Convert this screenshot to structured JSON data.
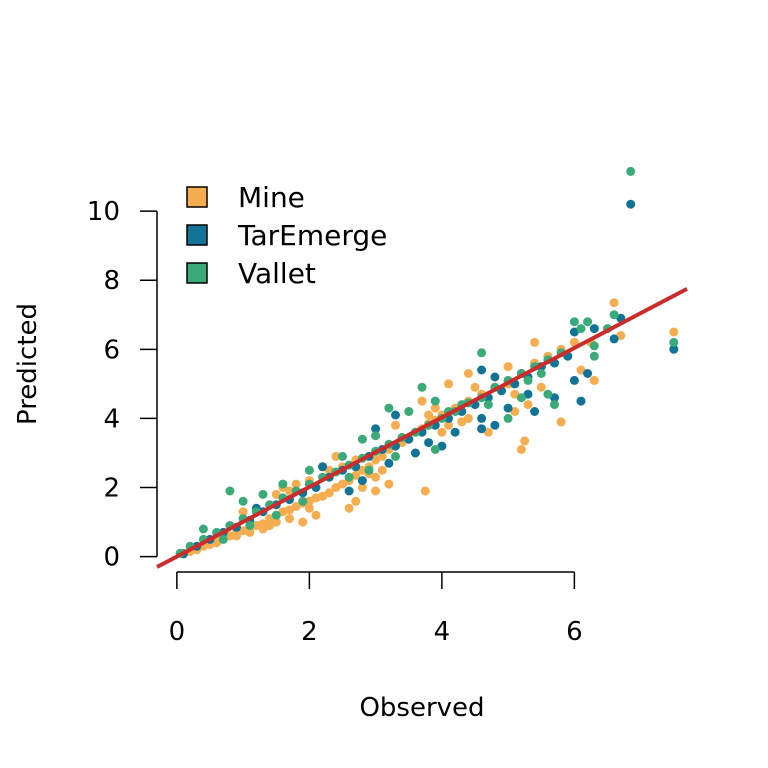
{
  "chart_data": {
    "type": "scatter",
    "xlabel": "Observed",
    "ylabel": "Predicted",
    "xticks": [
      0,
      2,
      4,
      6
    ],
    "yticks": [
      0,
      2,
      4,
      6,
      8,
      10
    ],
    "xlim": [
      -0.3,
      7.7
    ],
    "ylim": [
      -0.3,
      10.9
    ],
    "legend": {
      "position": "top-left",
      "entries": [
        {
          "label": "Mine",
          "color": "#F5AD4F"
        },
        {
          "label": "TarEmerge",
          "color": "#117497"
        },
        {
          "label": "Vallet",
          "color": "#3AAA78"
        }
      ]
    },
    "fit_line": {
      "color": "#CC2B2B",
      "x": [
        -0.3,
        7.7
      ],
      "y": [
        -0.3,
        7.75
      ]
    },
    "series": [
      {
        "name": "Mine",
        "color": "#F5AD4F",
        "points": [
          [
            0.1,
            0.1
          ],
          [
            0.2,
            0.15
          ],
          [
            0.3,
            0.25
          ],
          [
            0.4,
            0.3
          ],
          [
            0.5,
            0.35
          ],
          [
            0.6,
            0.5
          ],
          [
            0.7,
            0.55
          ],
          [
            0.8,
            0.6
          ],
          [
            0.9,
            0.7
          ],
          [
            1.0,
            0.75
          ],
          [
            1.1,
            0.8
          ],
          [
            1.2,
            0.9
          ],
          [
            1.3,
            0.95
          ],
          [
            1.4,
            1.1
          ],
          [
            1.5,
            1.2
          ],
          [
            1.6,
            1.3
          ],
          [
            1.7,
            1.35
          ],
          [
            1.8,
            1.45
          ],
          [
            1.9,
            1.55
          ],
          [
            2.0,
            1.6
          ],
          [
            2.1,
            1.7
          ],
          [
            2.2,
            1.75
          ],
          [
            2.3,
            1.85
          ],
          [
            2.4,
            2.0
          ],
          [
            2.5,
            2.1
          ],
          [
            2.6,
            2.2
          ],
          [
            2.7,
            2.35
          ],
          [
            2.8,
            2.5
          ],
          [
            2.9,
            2.6
          ],
          [
            3.0,
            2.8
          ],
          [
            3.1,
            2.9
          ],
          [
            3.2,
            3.1
          ],
          [
            3.3,
            3.2
          ],
          [
            3.4,
            3.3
          ],
          [
            3.5,
            3.4
          ],
          [
            3.6,
            3.6
          ],
          [
            3.7,
            3.7
          ],
          [
            3.8,
            3.85
          ],
          [
            3.9,
            3.95
          ],
          [
            4.0,
            4.1
          ],
          [
            4.2,
            4.3
          ],
          [
            4.4,
            4.5
          ],
          [
            4.6,
            4.7
          ],
          [
            4.8,
            4.9
          ],
          [
            5.0,
            5.0
          ],
          [
            5.2,
            5.3
          ],
          [
            5.4,
            5.6
          ],
          [
            5.6,
            5.8
          ],
          [
            5.8,
            6.0
          ],
          [
            6.0,
            6.2
          ],
          [
            1.0,
            1.3
          ],
          [
            1.5,
            1.8
          ],
          [
            2.0,
            2.2
          ],
          [
            2.3,
            2.5
          ],
          [
            2.5,
            2.6
          ],
          [
            2.7,
            2.8
          ],
          [
            2.9,
            2.4
          ],
          [
            3.0,
            2.3
          ],
          [
            3.2,
            2.1
          ],
          [
            3.0,
            1.9
          ],
          [
            1.3,
            0.8
          ],
          [
            1.5,
            1.0
          ],
          [
            1.9,
            1.0
          ],
          [
            2.1,
            1.2
          ],
          [
            2.6,
            1.4
          ],
          [
            2.8,
            2.0
          ],
          [
            3.1,
            2.5
          ],
          [
            3.6,
            3.0
          ],
          [
            4.1,
            3.8
          ],
          [
            4.4,
            4.0
          ],
          [
            4.5,
            4.9
          ],
          [
            4.4,
            5.3
          ],
          [
            4.1,
            5.0
          ],
          [
            3.9,
            4.3
          ],
          [
            3.7,
            4.5
          ],
          [
            3.3,
            3.8
          ],
          [
            3.5,
            4.2
          ],
          [
            2.4,
            2.9
          ],
          [
            2.2,
            2.6
          ],
          [
            1.8,
            2.1
          ],
          [
            3.75,
            1.9
          ],
          [
            3.8,
            4.1
          ],
          [
            4.0,
            3.6
          ],
          [
            4.3,
            3.9
          ],
          [
            4.7,
            3.6
          ],
          [
            5.1,
            4.2
          ],
          [
            5.2,
            3.1
          ],
          [
            5.25,
            3.35
          ],
          [
            5.1,
            4.7
          ],
          [
            5.3,
            4.4
          ],
          [
            5.4,
            6.2
          ],
          [
            5.8,
            3.9
          ],
          [
            5.5,
            4.9
          ],
          [
            6.1,
            5.4
          ],
          [
            6.3,
            5.1
          ],
          [
            6.25,
            6.2
          ],
          [
            6.6,
            7.35
          ],
          [
            6.7,
            6.4
          ],
          [
            7.5,
            6.5
          ],
          [
            0.3,
            0.2
          ],
          [
            0.6,
            0.4
          ],
          [
            0.9,
            0.6
          ],
          [
            1.1,
            0.7
          ],
          [
            1.4,
            0.9
          ],
          [
            1.7,
            1.1
          ],
          [
            2.0,
            1.4
          ],
          [
            1.6,
            2.0
          ],
          [
            1.7,
            1.9
          ],
          [
            2.7,
            1.6
          ],
          [
            5.0,
            5.5
          ]
        ]
      },
      {
        "name": "TarEmerge",
        "color": "#117497",
        "points": [
          [
            0.1,
            0.08
          ],
          [
            0.3,
            0.3
          ],
          [
            0.5,
            0.5
          ],
          [
            0.7,
            0.7
          ],
          [
            0.9,
            0.85
          ],
          [
            1.1,
            1.05
          ],
          [
            1.3,
            1.3
          ],
          [
            1.5,
            1.5
          ],
          [
            1.7,
            1.65
          ],
          [
            1.9,
            1.85
          ],
          [
            2.1,
            2.0
          ],
          [
            2.3,
            2.3
          ],
          [
            2.5,
            2.5
          ],
          [
            2.7,
            2.6
          ],
          [
            2.9,
            2.9
          ],
          [
            3.1,
            3.1
          ],
          [
            3.3,
            3.2
          ],
          [
            3.5,
            3.4
          ],
          [
            3.7,
            3.6
          ],
          [
            3.9,
            3.8
          ],
          [
            4.1,
            4.0
          ],
          [
            4.3,
            4.2
          ],
          [
            4.5,
            4.4
          ],
          [
            4.7,
            4.6
          ],
          [
            4.9,
            4.8
          ],
          [
            5.1,
            5.0
          ],
          [
            5.3,
            5.2
          ],
          [
            5.5,
            5.5
          ],
          [
            5.7,
            5.6
          ],
          [
            5.9,
            5.8
          ],
          [
            2.6,
            1.9
          ],
          [
            2.8,
            2.2
          ],
          [
            3.2,
            2.7
          ],
          [
            3.6,
            3.0
          ],
          [
            3.8,
            3.3
          ],
          [
            4.0,
            3.2
          ],
          [
            4.2,
            3.6
          ],
          [
            4.6,
            4.0
          ],
          [
            4.8,
            3.8
          ],
          [
            5.0,
            4.3
          ],
          [
            4.6,
            3.7
          ],
          [
            5.3,
            4.7
          ],
          [
            4.6,
            5.4
          ],
          [
            4.8,
            5.2
          ],
          [
            5.2,
            5.3
          ],
          [
            5.4,
            4.2
          ],
          [
            5.7,
            4.6
          ],
          [
            6.0,
            5.1
          ],
          [
            6.1,
            4.5
          ],
          [
            6.2,
            5.3
          ],
          [
            6.0,
            6.5
          ],
          [
            6.3,
            6.6
          ],
          [
            6.6,
            6.3
          ],
          [
            6.7,
            6.9
          ],
          [
            7.5,
            6.0
          ],
          [
            6.85,
            10.2
          ],
          [
            3.3,
            4.1
          ],
          [
            3.0,
            3.7
          ],
          [
            2.2,
            2.6
          ],
          [
            1.2,
            1.4
          ]
        ]
      },
      {
        "name": "Vallet",
        "color": "#3AAA78",
        "points": [
          [
            0.05,
            0.1
          ],
          [
            0.2,
            0.3
          ],
          [
            0.4,
            0.5
          ],
          [
            0.6,
            0.7
          ],
          [
            0.8,
            0.9
          ],
          [
            1.0,
            1.1
          ],
          [
            1.2,
            1.3
          ],
          [
            1.4,
            1.5
          ],
          [
            1.6,
            1.7
          ],
          [
            1.8,
            1.9
          ],
          [
            2.0,
            2.1
          ],
          [
            2.2,
            2.3
          ],
          [
            2.4,
            2.45
          ],
          [
            2.6,
            2.65
          ],
          [
            2.8,
            2.85
          ],
          [
            3.0,
            3.05
          ],
          [
            3.2,
            3.25
          ],
          [
            3.4,
            3.45
          ],
          [
            3.6,
            3.6
          ],
          [
            3.8,
            3.8
          ],
          [
            4.0,
            4.0
          ],
          [
            4.2,
            4.2
          ],
          [
            4.4,
            4.45
          ],
          [
            4.6,
            4.6
          ],
          [
            4.8,
            4.9
          ],
          [
            5.0,
            5.1
          ],
          [
            5.2,
            5.3
          ],
          [
            5.4,
            5.5
          ],
          [
            5.6,
            5.7
          ],
          [
            5.8,
            5.9
          ],
          [
            0.4,
            0.8
          ],
          [
            0.8,
            1.9
          ],
          [
            1.0,
            1.6
          ],
          [
            1.3,
            1.8
          ],
          [
            1.6,
            2.1
          ],
          [
            2.0,
            2.5
          ],
          [
            2.5,
            2.9
          ],
          [
            2.8,
            3.4
          ],
          [
            3.0,
            3.5
          ],
          [
            3.2,
            4.3
          ],
          [
            3.5,
            4.2
          ],
          [
            3.7,
            4.9
          ],
          [
            3.9,
            4.5
          ],
          [
            4.1,
            4.2
          ],
          [
            4.3,
            4.4
          ],
          [
            4.6,
            5.9
          ],
          [
            4.7,
            4.4
          ],
          [
            5.0,
            4.0
          ],
          [
            5.2,
            4.6
          ],
          [
            5.3,
            5.1
          ],
          [
            5.5,
            5.3
          ],
          [
            5.6,
            4.7
          ],
          [
            5.7,
            4.4
          ],
          [
            6.0,
            6.8
          ],
          [
            6.1,
            6.6
          ],
          [
            6.2,
            6.8
          ],
          [
            6.3,
            5.8
          ],
          [
            6.5,
            6.6
          ],
          [
            6.6,
            7.0
          ],
          [
            6.85,
            11.15
          ],
          [
            7.5,
            6.2
          ],
          [
            6.3,
            6.1
          ],
          [
            3.9,
            3.1
          ],
          [
            3.3,
            2.9
          ],
          [
            2.9,
            2.5
          ],
          [
            2.6,
            2.3
          ],
          [
            1.9,
            1.6
          ],
          [
            1.5,
            1.2
          ],
          [
            1.1,
            0.9
          ],
          [
            0.7,
            0.5
          ]
        ]
      }
    ]
  }
}
